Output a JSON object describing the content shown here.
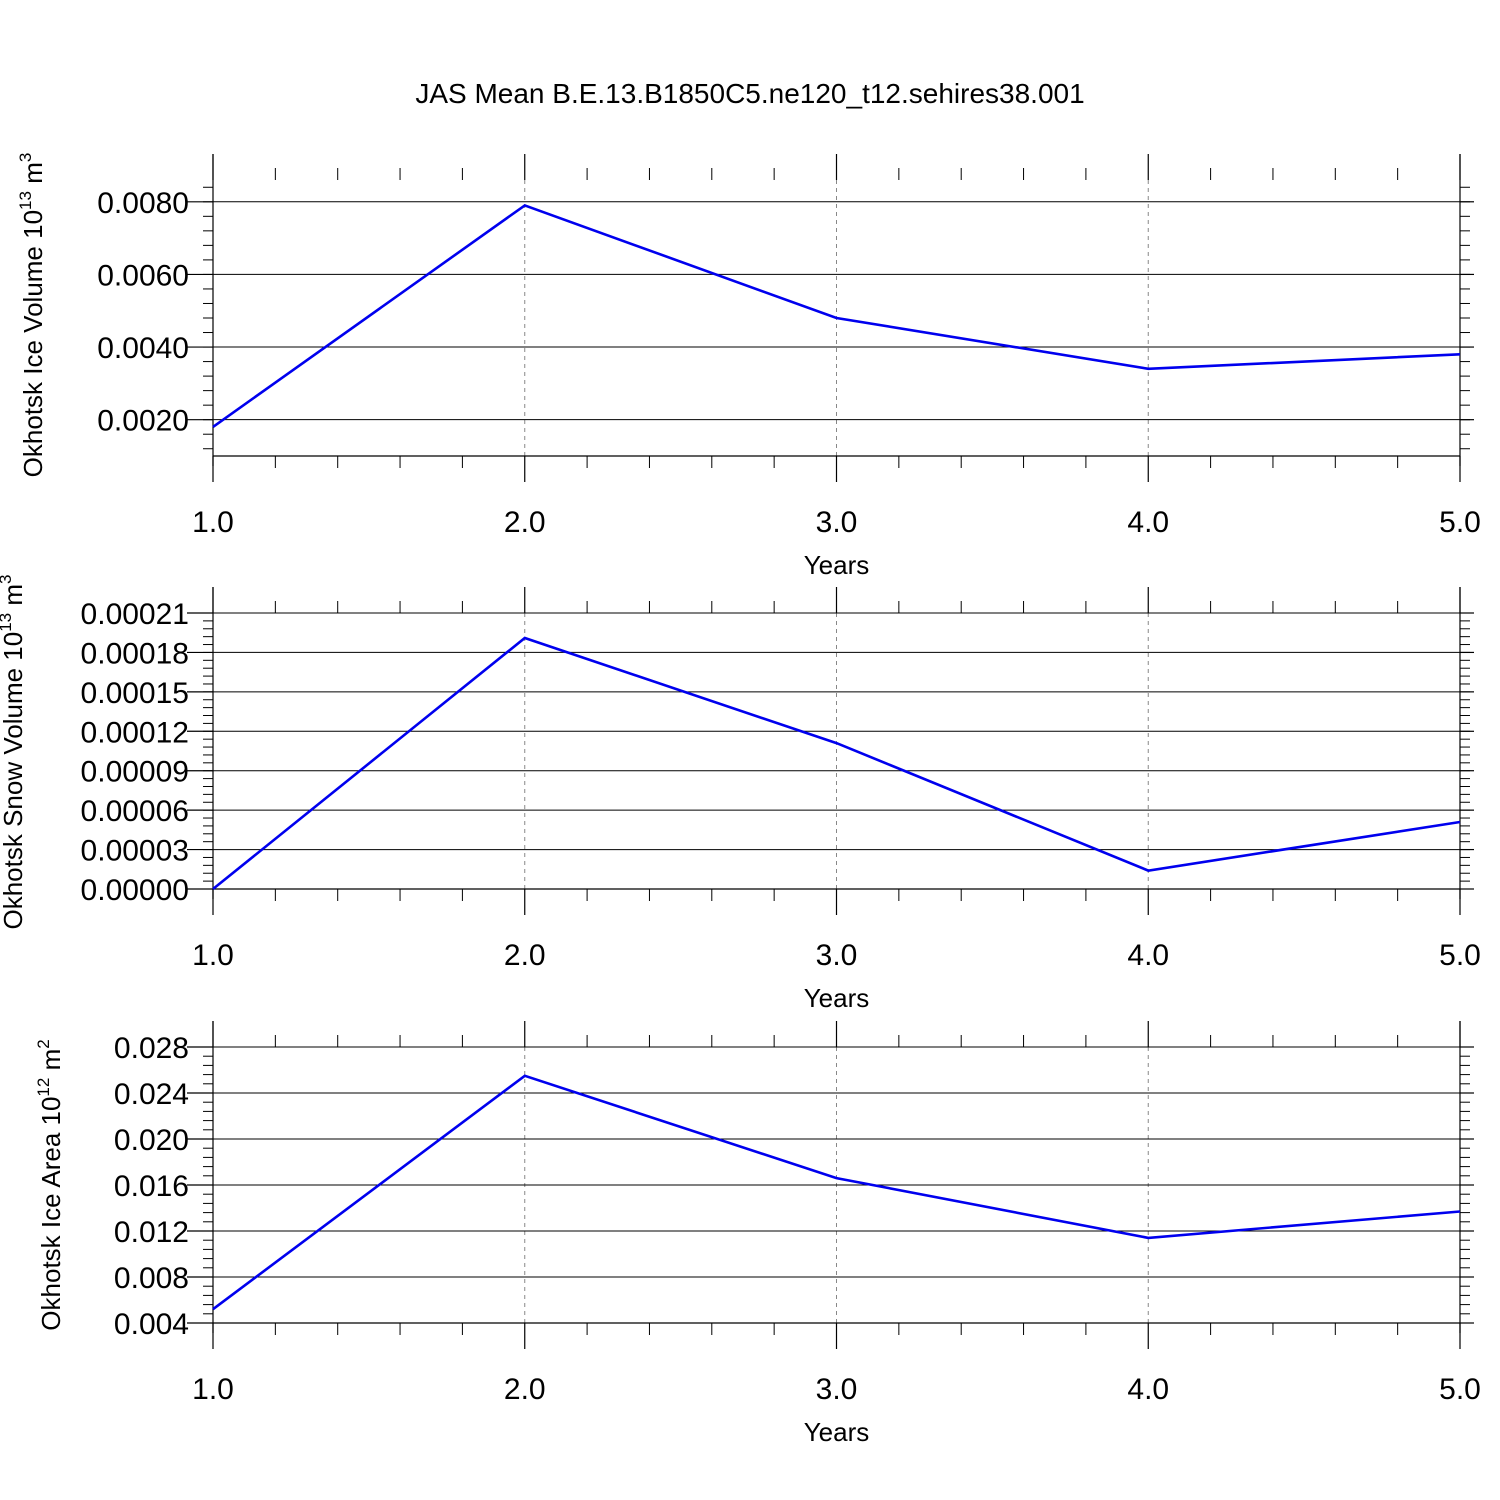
{
  "figure": {
    "title": "JAS Mean B.E.13.B1850C5.ne120_t12.sehires38.001"
  },
  "chart_data": [
    {
      "type": "line",
      "xlabel": "Years",
      "ylabel_main": "Okhotsk Ice Volume 10",
      "ylabel_exp": "13",
      "ylabel_unit": "m",
      "ylabel_unit_exp": "3",
      "x_ticks": [
        "1.0",
        "2.0",
        "3.0",
        "4.0",
        "5.0"
      ],
      "y_ticks": [
        "0.0020",
        "0.0040",
        "0.0060",
        "0.0080"
      ],
      "xlim": [
        1.0,
        5.0
      ],
      "ylim": [
        0.001,
        0.0086
      ],
      "grid_x": "dashed",
      "line_color": "#0000ee",
      "series": [
        {
          "x": [
            1.0,
            2.0,
            3.0,
            4.0,
            5.0
          ],
          "values": [
            0.0018,
            0.0079,
            0.0048,
            0.0034,
            0.0038
          ]
        }
      ]
    },
    {
      "type": "line",
      "xlabel": "Years",
      "ylabel_main": "Okhotsk Snow Volume 10",
      "ylabel_exp": "13",
      "ylabel_unit": "m",
      "ylabel_unit_exp": "3",
      "x_ticks": [
        "1.0",
        "2.0",
        "3.0",
        "4.0",
        "5.0"
      ],
      "y_ticks": [
        "0.00000",
        "0.00003",
        "0.00006",
        "0.00009",
        "0.00012",
        "0.00015",
        "0.00018",
        "0.00021"
      ],
      "xlim": [
        1.0,
        5.0
      ],
      "ylim": [
        0.0,
        0.00021
      ],
      "grid_x": "dashed",
      "line_color": "#0000ee",
      "series": [
        {
          "x": [
            1.0,
            2.0,
            3.0,
            4.0,
            5.0
          ],
          "values": [
            0.0,
            0.000191,
            0.000111,
            1.4e-05,
            5.1e-05
          ]
        }
      ]
    },
    {
      "type": "line",
      "xlabel": "Years",
      "ylabel_main": "Okhotsk Ice Area 10",
      "ylabel_exp": "12",
      "ylabel_unit": "m",
      "ylabel_unit_exp": "2",
      "x_ticks": [
        "1.0",
        "2.0",
        "3.0",
        "4.0",
        "5.0"
      ],
      "y_ticks": [
        "0.004",
        "0.008",
        "0.012",
        "0.016",
        "0.020",
        "0.024",
        "0.028"
      ],
      "xlim": [
        1.0,
        5.0
      ],
      "ylim": [
        0.004,
        0.028
      ],
      "grid_x": "dashed",
      "line_color": "#0000ee",
      "series": [
        {
          "x": [
            1.0,
            2.0,
            3.0,
            4.0,
            5.0
          ],
          "values": [
            0.0052,
            0.0255,
            0.0166,
            0.0114,
            0.0137
          ]
        }
      ]
    }
  ]
}
